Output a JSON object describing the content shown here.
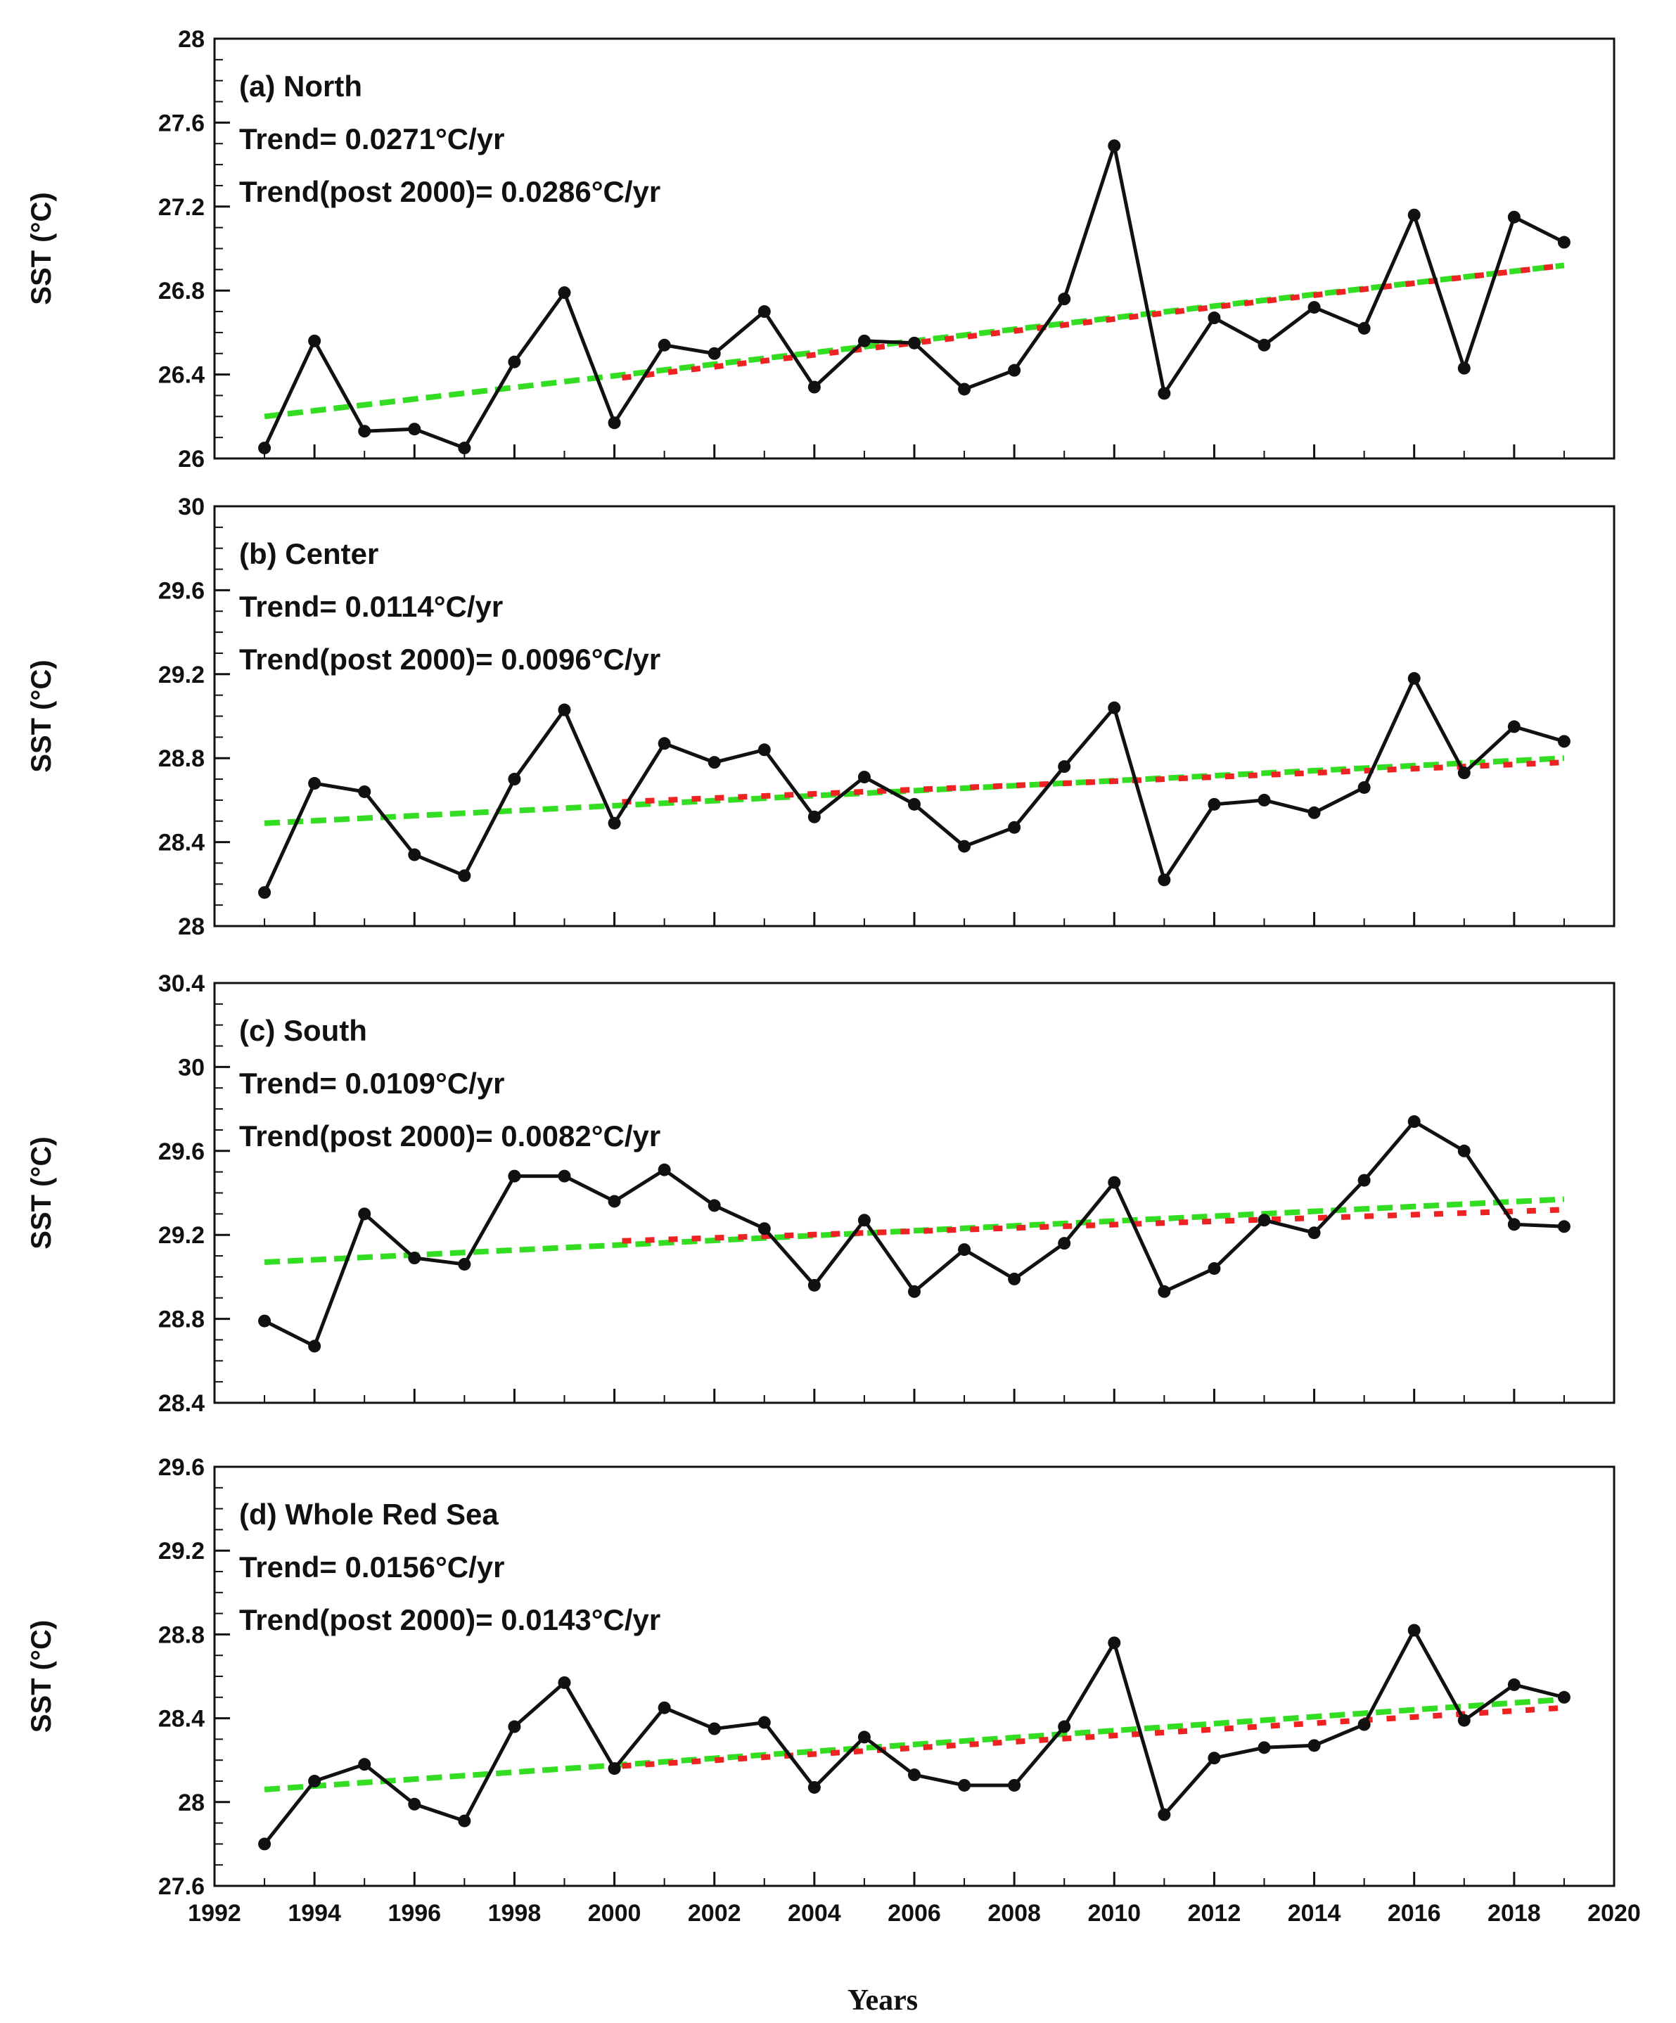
{
  "figure": {
    "xlabel": "Years",
    "ylabel": "SST (°C)"
  },
  "colors": {
    "series": "#111111",
    "trend_full": "#33dd22",
    "trend_post2000": "#ee2222"
  },
  "chart_data": [
    {
      "type": "line",
      "panel": "(a) North",
      "title": "(a) North",
      "trend_text": "Trend= 0.0271°C/yr",
      "trend_post2000_text": "Trend(post 2000)= 0.0286°C/yr",
      "xlabel": "Years",
      "ylabel": "SST (°C)",
      "xlim": [
        1992,
        2020
      ],
      "ylim": [
        26,
        28
      ],
      "yticks": [
        26,
        26.4,
        26.8,
        27.2,
        27.6,
        28
      ],
      "ytick_labels": [
        "26",
        "26.4",
        "26.8",
        "27.2",
        "27.6",
        "28"
      ],
      "x": [
        1993,
        1994,
        1995,
        1996,
        1997,
        1998,
        1999,
        2000,
        2001,
        2002,
        2003,
        2004,
        2005,
        2006,
        2007,
        2008,
        2009,
        2010,
        2011,
        2012,
        2013,
        2014,
        2015,
        2016,
        2017,
        2018,
        2019
      ],
      "values": [
        26.05,
        26.56,
        26.13,
        26.14,
        26.05,
        26.46,
        26.79,
        26.17,
        26.54,
        26.5,
        26.7,
        26.34,
        26.56,
        26.55,
        26.33,
        26.42,
        26.76,
        27.49,
        26.31,
        26.67,
        26.54,
        26.72,
        26.62,
        27.16,
        26.43,
        27.15,
        27.03
      ],
      "trend_full": {
        "x": [
          1993,
          2019
        ],
        "y": [
          26.2,
          26.92
        ]
      },
      "trend_post2000": {
        "x": [
          2000,
          2019
        ],
        "y": [
          26.38,
          26.92
        ]
      }
    },
    {
      "type": "line",
      "panel": "(b) Center",
      "title": "(b) Center",
      "trend_text": "Trend= 0.0114°C/yr",
      "trend_post2000_text": "Trend(post 2000)= 0.0096°C/yr",
      "xlabel": "Years",
      "ylabel": "SST (°C)",
      "xlim": [
        1992,
        2020
      ],
      "ylim": [
        28,
        30
      ],
      "yticks": [
        28,
        28.4,
        28.8,
        29.2,
        29.6,
        30
      ],
      "ytick_labels": [
        "28",
        "28.4",
        "28.8",
        "29.2",
        "29.6",
        "30"
      ],
      "x": [
        1993,
        1994,
        1995,
        1996,
        1997,
        1998,
        1999,
        2000,
        2001,
        2002,
        2003,
        2004,
        2005,
        2006,
        2007,
        2008,
        2009,
        2010,
        2011,
        2012,
        2013,
        2014,
        2015,
        2016,
        2017,
        2018,
        2019
      ],
      "values": [
        28.16,
        28.68,
        28.64,
        28.34,
        28.24,
        28.7,
        29.03,
        28.49,
        28.87,
        28.78,
        28.84,
        28.52,
        28.71,
        28.58,
        28.38,
        28.47,
        28.76,
        29.04,
        28.22,
        28.58,
        28.6,
        28.54,
        28.66,
        29.18,
        28.73,
        28.95,
        28.88
      ],
      "trend_full": {
        "x": [
          1993,
          2019
        ],
        "y": [
          28.49,
          28.8
        ]
      },
      "trend_post2000": {
        "x": [
          2000,
          2019
        ],
        "y": [
          28.59,
          28.78
        ]
      }
    },
    {
      "type": "line",
      "panel": "(c) South",
      "title": "(c) South",
      "trend_text": "Trend= 0.0109°C/yr",
      "trend_post2000_text": "Trend(post 2000)= 0.0082°C/yr",
      "xlabel": "Years",
      "ylabel": "SST (°C)",
      "xlim": [
        1992,
        2020
      ],
      "ylim": [
        28.4,
        30.4
      ],
      "yticks": [
        28.4,
        28.8,
        29.2,
        29.6,
        30,
        30.4
      ],
      "ytick_labels": [
        "28.4",
        "28.8",
        "29.2",
        "29.6",
        "30",
        "30.4"
      ],
      "x": [
        1993,
        1994,
        1995,
        1996,
        1997,
        1998,
        1999,
        2000,
        2001,
        2002,
        2003,
        2004,
        2005,
        2006,
        2007,
        2008,
        2009,
        2010,
        2011,
        2012,
        2013,
        2014,
        2015,
        2016,
        2017,
        2018,
        2019
      ],
      "values": [
        28.79,
        28.67,
        29.3,
        29.09,
        29.06,
        29.48,
        29.48,
        29.36,
        29.51,
        29.34,
        29.23,
        28.96,
        29.27,
        28.93,
        29.13,
        28.99,
        29.16,
        29.45,
        28.93,
        29.04,
        29.27,
        29.21,
        29.46,
        29.74,
        29.6,
        29.25,
        29.24
      ],
      "trend_full": {
        "x": [
          1993,
          2019
        ],
        "y": [
          29.07,
          29.37
        ]
      },
      "trend_post2000": {
        "x": [
          2000,
          2019
        ],
        "y": [
          29.17,
          29.32
        ]
      }
    },
    {
      "type": "line",
      "panel": "(d) Whole Red Sea",
      "title": "(d) Whole Red Sea",
      "trend_text": "Trend= 0.0156°C/yr",
      "trend_post2000_text": "Trend(post 2000)= 0.0143°C/yr",
      "xlabel": "Years",
      "ylabel": "SST (°C)",
      "xlim": [
        1992,
        2020
      ],
      "ylim": [
        27.6,
        29.6
      ],
      "yticks": [
        27.6,
        28,
        28.4,
        28.8,
        29.2,
        29.6
      ],
      "ytick_labels": [
        "27.6",
        "28",
        "28.4",
        "28.8",
        "29.2",
        "29.6"
      ],
      "xticks": [
        1992,
        1994,
        1996,
        1998,
        2000,
        2002,
        2004,
        2006,
        2008,
        2010,
        2012,
        2014,
        2016,
        2018,
        2020
      ],
      "x": [
        1993,
        1994,
        1995,
        1996,
        1997,
        1998,
        1999,
        2000,
        2001,
        2002,
        2003,
        2004,
        2005,
        2006,
        2007,
        2008,
        2009,
        2010,
        2011,
        2012,
        2013,
        2014,
        2015,
        2016,
        2017,
        2018,
        2019
      ],
      "values": [
        27.8,
        28.1,
        28.18,
        27.99,
        27.91,
        28.36,
        28.57,
        28.16,
        28.45,
        28.35,
        28.38,
        28.07,
        28.31,
        28.13,
        28.08,
        28.08,
        28.36,
        28.76,
        27.94,
        28.21,
        28.26,
        28.27,
        28.37,
        28.82,
        28.39,
        28.56,
        28.5
      ],
      "trend_full": {
        "x": [
          1993,
          2019
        ],
        "y": [
          28.06,
          28.49
        ]
      },
      "trend_post2000": {
        "x": [
          2000,
          2019
        ],
        "y": [
          28.17,
          28.45
        ]
      }
    }
  ]
}
